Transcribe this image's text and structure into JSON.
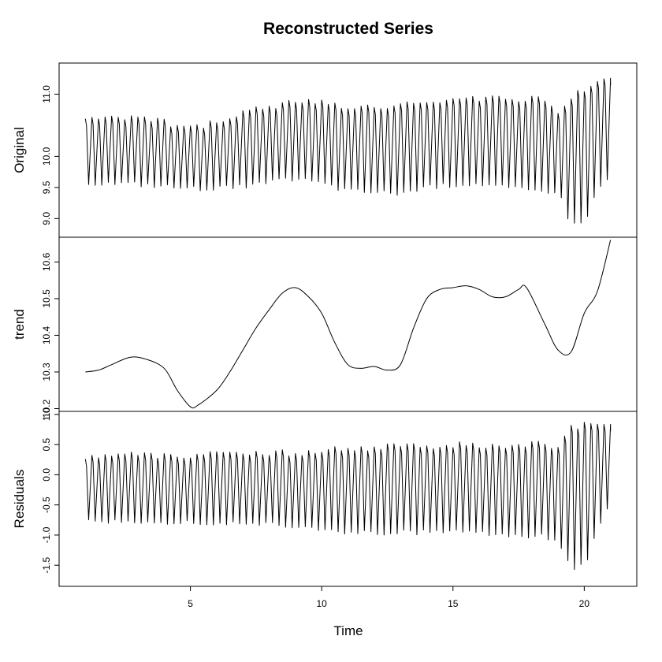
{
  "chart_data": {
    "type": "line",
    "title": "Reconstructed Series",
    "xlabel": "Time",
    "xlim": [
      0,
      22
    ],
    "x_ticks": [
      "5",
      "10",
      "15",
      "20"
    ],
    "panels": [
      {
        "name": "Original",
        "ylabel": "Original",
        "ylim": [
          8.7,
          11.5
        ],
        "y_ticks": [
          "9.0",
          "9.5",
          "10.0",
          "11.0"
        ],
        "series": [
          {
            "kind": "oscillating",
            "x_start": 1,
            "x_end": 21,
            "cycles_per_unit": 4,
            "lower": [
              [
                1,
                9.53
              ],
              [
                3,
                9.51
              ],
              [
                5,
                9.44
              ],
              [
                7,
                9.46
              ],
              [
                9,
                9.6
              ],
              [
                10,
                9.52
              ],
              [
                11,
                9.4
              ],
              [
                12,
                9.38
              ],
              [
                13,
                9.36
              ],
              [
                14,
                9.45
              ],
              [
                15,
                9.5
              ],
              [
                16,
                9.52
              ],
              [
                17,
                9.45
              ],
              [
                18,
                9.4
              ],
              [
                19,
                9.4
              ],
              [
                19.5,
                8.85
              ],
              [
                20,
                8.9
              ],
              [
                20.5,
                9.4
              ],
              [
                21,
                9.65
              ]
            ],
            "upper": [
              [
                1,
                10.65
              ],
              [
                3,
                10.68
              ],
              [
                4,
                10.6
              ],
              [
                5,
                10.52
              ],
              [
                6,
                10.6
              ],
              [
                7,
                10.75
              ],
              [
                8,
                10.85
              ],
              [
                9,
                10.95
              ],
              [
                10,
                10.92
              ],
              [
                11,
                10.85
              ],
              [
                12,
                10.82
              ],
              [
                13,
                10.88
              ],
              [
                14,
                10.95
              ],
              [
                15,
                11.0
              ],
              [
                16,
                11.0
              ],
              [
                17,
                11.0
              ],
              [
                18,
                10.97
              ],
              [
                18.5,
                11.0
              ],
              [
                19,
                10.75
              ],
              [
                19.5,
                11.0
              ],
              [
                20,
                11.15
              ],
              [
                20.5,
                11.25
              ],
              [
                21,
                11.35
              ]
            ]
          }
        ]
      },
      {
        "name": "trend",
        "ylabel": "trend",
        "ylim": [
          0.1925,
          0.6675
        ],
        "y_ticks": [
          "10.2",
          "10.3",
          "10.4",
          "10.5",
          "10.6"
        ],
        "y_tick_values": [
          0.2,
          0.3,
          0.4,
          0.5,
          0.6
        ],
        "series": [
          {
            "kind": "smooth",
            "points": [
              [
                1.0,
                10.3
              ],
              [
                1.5,
                10.305
              ],
              [
                2.0,
                10.32
              ],
              [
                2.7,
                10.34
              ],
              [
                3.3,
                10.335
              ],
              [
                4.0,
                10.31
              ],
              [
                4.5,
                10.25
              ],
              [
                5.0,
                10.205
              ],
              [
                5.3,
                10.21
              ],
              [
                6.0,
                10.25
              ],
              [
                6.5,
                10.3
              ],
              [
                7.0,
                10.36
              ],
              [
                7.5,
                10.42
              ],
              [
                8.0,
                10.47
              ],
              [
                8.5,
                10.515
              ],
              [
                9.0,
                10.53
              ],
              [
                9.5,
                10.505
              ],
              [
                10.0,
                10.46
              ],
              [
                10.5,
                10.38
              ],
              [
                11.0,
                10.32
              ],
              [
                11.5,
                10.31
              ],
              [
                12.0,
                10.315
              ],
              [
                12.5,
                10.305
              ],
              [
                13.0,
                10.32
              ],
              [
                13.5,
                10.42
              ],
              [
                14.0,
                10.5
              ],
              [
                14.5,
                10.525
              ],
              [
                15.0,
                10.53
              ],
              [
                15.5,
                10.535
              ],
              [
                16.0,
                10.525
              ],
              [
                16.5,
                10.505
              ],
              [
                17.0,
                10.505
              ],
              [
                17.5,
                10.525
              ],
              [
                17.8,
                10.53
              ],
              [
                18.5,
                10.43
              ],
              [
                19.0,
                10.36
              ],
              [
                19.5,
                10.355
              ],
              [
                20.0,
                10.46
              ],
              [
                20.5,
                10.52
              ],
              [
                21.0,
                10.66
              ]
            ]
          }
        ]
      },
      {
        "name": "Residuals",
        "ylabel": "Residuals",
        "ylim": [
          -1.85,
          1.05
        ],
        "y_ticks": [
          "-1.5",
          "-1.0",
          "-0.5",
          "0.0",
          "0.5",
          "1.0"
        ],
        "series": [
          {
            "kind": "oscillating",
            "x_start": 1,
            "x_end": 21,
            "cycles_per_unit": 4,
            "lower": [
              [
                1,
                -0.8
              ],
              [
                3,
                -0.82
              ],
              [
                5,
                -0.85
              ],
              [
                7,
                -0.85
              ],
              [
                9,
                -0.9
              ],
              [
                11,
                -1.0
              ],
              [
                13,
                -1.0
              ],
              [
                15,
                -1.0
              ],
              [
                17,
                -1.05
              ],
              [
                18,
                -1.05
              ],
              [
                19,
                -1.1
              ],
              [
                19.5,
                -1.6
              ],
              [
                20,
                -1.55
              ],
              [
                20.5,
                -1.0
              ],
              [
                21,
                -0.5
              ]
            ],
            "upper": [
              [
                1,
                0.35
              ],
              [
                3,
                0.38
              ],
              [
                5,
                0.38
              ],
              [
                7,
                0.4
              ],
              [
                9,
                0.42
              ],
              [
                11,
                0.5
              ],
              [
                13,
                0.52
              ],
              [
                15,
                0.55
              ],
              [
                17,
                0.55
              ],
              [
                18,
                0.58
              ],
              [
                19,
                0.5
              ],
              [
                19.5,
                0.85
              ],
              [
                20,
                0.9
              ],
              [
                20.5,
                0.85
              ],
              [
                21,
                0.95
              ]
            ]
          }
        ]
      }
    ]
  }
}
